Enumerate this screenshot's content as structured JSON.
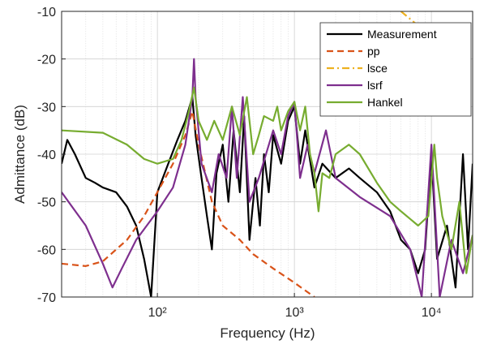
{
  "chart_data": {
    "type": "line",
    "xlabel": "Frequency (Hz)",
    "ylabel": "Admittance (dB)",
    "xscale": "log",
    "xlim": [
      20,
      20000
    ],
    "ylim": [
      -70,
      -10
    ],
    "xticks": [
      {
        "value": 100,
        "label": "10²"
      },
      {
        "value": 1000,
        "label": "10³"
      },
      {
        "value": 10000,
        "label": "10⁴"
      }
    ],
    "yticks": [
      -70,
      -60,
      -50,
      -40,
      -30,
      -20,
      -10
    ],
    "grid": true,
    "legend": "upper right",
    "series": [
      {
        "name": "Measurement",
        "color": "#000000",
        "dash": "solid",
        "x": [
          20,
          22,
          25,
          30,
          35,
          40,
          50,
          60,
          70,
          80,
          90,
          100,
          120,
          140,
          160,
          180,
          190,
          210,
          230,
          250,
          270,
          300,
          330,
          360,
          400,
          430,
          470,
          520,
          560,
          600,
          650,
          700,
          800,
          900,
          1000,
          1100,
          1200,
          1400,
          1600,
          2000,
          2500,
          3000,
          4000,
          5000,
          6000,
          7000,
          8000,
          9000,
          10000,
          11000,
          13000,
          15000,
          17000,
          18500,
          20000
        ],
        "values": [
          -42,
          -37,
          -40,
          -45,
          -46,
          -47,
          -48,
          -51,
          -55,
          -62,
          -70,
          -48,
          -42,
          -37,
          -33,
          -28,
          -36,
          -45,
          -53,
          -60,
          -44,
          -38,
          -50,
          -35,
          -48,
          -32,
          -58,
          -45,
          -55,
          -40,
          -48,
          -36,
          -42,
          -33,
          -30,
          -42,
          -35,
          -47,
          -42,
          -45,
          -43,
          -45,
          -48,
          -52,
          -58,
          -60,
          -65,
          -60,
          -40,
          -62,
          -55,
          -68,
          -40,
          -60,
          -42
        ]
      },
      {
        "name": "pp",
        "color": "#d95319",
        "dash": "dashed",
        "x": [
          20,
          30,
          40,
          60,
          80,
          100,
          130,
          160,
          180,
          200,
          250,
          300,
          400,
          500,
          700,
          1000,
          1400
        ],
        "values": [
          -63,
          -63.5,
          -62.5,
          -58,
          -53,
          -48,
          -42,
          -36,
          -31,
          -38,
          -50,
          -55,
          -58,
          -61,
          -64,
          -67,
          -70
        ]
      },
      {
        "name": "lsce",
        "color": "#edb120",
        "dash": "dashdot",
        "x": [
          6000,
          8000,
          10000,
          14000,
          20000
        ],
        "values": [
          -10,
          -13,
          -15,
          -18,
          -22
        ]
      },
      {
        "name": "lsrf",
        "color": "#7e2f8e",
        "dash": "solid",
        "x": [
          20,
          30,
          40,
          47,
          55,
          70,
          100,
          130,
          160,
          180,
          185,
          190,
          210,
          250,
          280,
          320,
          350,
          380,
          420,
          470,
          550,
          700,
          800,
          900,
          1000,
          1100,
          1250,
          1400,
          1700,
          2000,
          3000,
          5000,
          7000,
          8500,
          10000,
          11500,
          14000,
          17000,
          20000
        ],
        "values": [
          -48,
          -55,
          -63,
          -68,
          -64,
          -58,
          -52,
          -47,
          -38,
          -28,
          -20,
          -28,
          -42,
          -48,
          -40,
          -45,
          -30,
          -45,
          -28,
          -50,
          -45,
          -35,
          -40,
          -32,
          -29,
          -45,
          -38,
          -44,
          -35,
          -45,
          -49,
          -53,
          -60,
          -70,
          -38,
          -70,
          -58,
          -65,
          -57
        ]
      },
      {
        "name": "Hankel",
        "color": "#77ac30",
        "dash": "solid",
        "x": [
          20,
          40,
          60,
          80,
          100,
          130,
          150,
          170,
          185,
          200,
          230,
          260,
          300,
          350,
          400,
          450,
          500,
          550,
          600,
          700,
          750,
          800,
          900,
          1000,
          1100,
          1200,
          1300,
          1400,
          1500,
          1600,
          1800,
          2000,
          2500,
          3000,
          4000,
          5000,
          6000,
          8000,
          9500,
          10500,
          11000,
          12000,
          14000,
          16000,
          18000,
          20000
        ],
        "values": [
          -35,
          -35.5,
          -38,
          -41,
          -42,
          -41,
          -37,
          -31,
          -26,
          -33,
          -37,
          -33,
          -37,
          -30,
          -36,
          -28,
          -40,
          -36,
          -32,
          -33,
          -30,
          -35,
          -31,
          -29,
          -35,
          -30,
          -40,
          -44,
          -52,
          -44,
          -45,
          -40,
          -38,
          -40,
          -46,
          -50,
          -52,
          -55,
          -53,
          -38,
          -45,
          -53,
          -60,
          -50,
          -65,
          -57
        ]
      }
    ]
  }
}
